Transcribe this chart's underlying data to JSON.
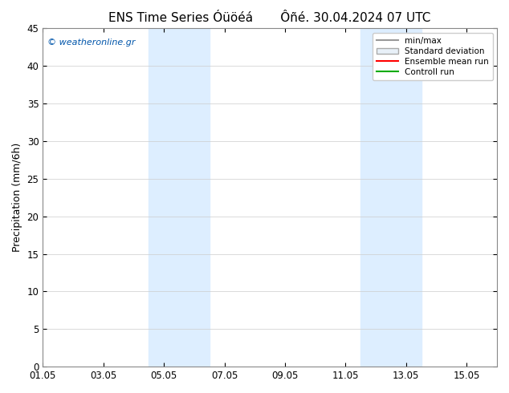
{
  "title": "ENS Time Series Óüöéá       Ôñé. 30.04.2024 07 UTC",
  "ylabel": "Precipitation (mm/6h)",
  "ylim": [
    0,
    45
  ],
  "yticks": [
    0,
    5,
    10,
    15,
    20,
    25,
    30,
    35,
    40,
    45
  ],
  "xlim_start": "2024-05-01",
  "xlim_end": "2024-05-16",
  "xtick_labels": [
    "01.05",
    "03.05",
    "05.05",
    "07.05",
    "09.05",
    "11.05",
    "13.05",
    "15.05"
  ],
  "xtick_positions": [
    0,
    2,
    4,
    6,
    8,
    10,
    12,
    14
  ],
  "shaded_regions": [
    {
      "xstart": 3.5,
      "xend": 5.5,
      "color": "#ddeeff"
    },
    {
      "xstart": 10.5,
      "xend": 12.5,
      "color": "#ddeeff"
    }
  ],
  "legend_items": [
    {
      "label": "min/max",
      "color": "#999999",
      "type": "line"
    },
    {
      "label": "Standard deviation",
      "color": "#cccccc",
      "type": "box"
    },
    {
      "label": "Ensemble mean run",
      "color": "#ff0000",
      "type": "line"
    },
    {
      "label": "Controll run",
      "color": "#00aa00",
      "type": "line"
    }
  ],
  "watermark": "© weatheronline.gr",
  "bg_color": "#ffffff",
  "plot_bg_color": "#ffffff",
  "title_fontsize": 11,
  "axis_fontsize": 9,
  "tick_fontsize": 8.5
}
